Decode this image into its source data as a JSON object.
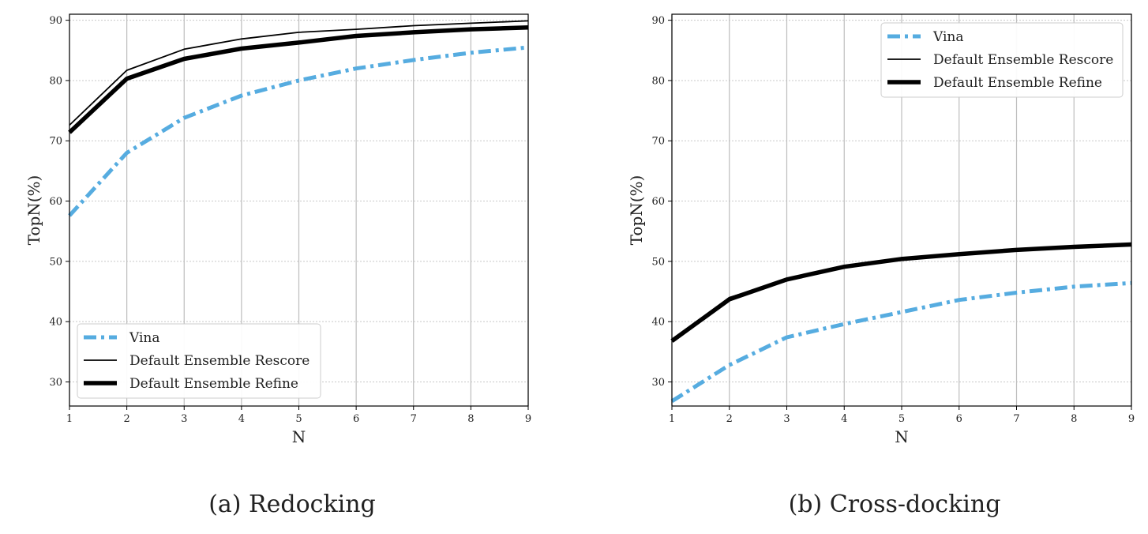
{
  "figure": {
    "captions": [
      "(a) Redocking",
      "(b) Cross-docking"
    ]
  },
  "colors": {
    "vina": "#56ACE0",
    "black": "#000000"
  },
  "chart_data": [
    {
      "type": "line",
      "title": "",
      "caption": "(a) Redocking",
      "xlabel": "N",
      "ylabel": "TopN(%)",
      "x": [
        1,
        2,
        3,
        4,
        5,
        6,
        7,
        8,
        9
      ],
      "xlim": [
        1,
        9
      ],
      "ylim": [
        26,
        91
      ],
      "yticks": [
        30,
        40,
        50,
        60,
        70,
        80,
        90
      ],
      "legend_position": "lower-left",
      "series": [
        {
          "name": "Vina",
          "style": "dashdot",
          "values": [
            57.6,
            68.0,
            73.8,
            77.5,
            80.0,
            82.0,
            83.4,
            84.6,
            85.5
          ]
        },
        {
          "name": "Default Ensemble Rescore",
          "style": "thin",
          "values": [
            72.6,
            81.7,
            85.2,
            86.9,
            88.0,
            88.5,
            89.1,
            89.5,
            89.9
          ]
        },
        {
          "name": "Default Ensemble Refine",
          "style": "thick",
          "values": [
            71.4,
            80.3,
            83.6,
            85.3,
            86.3,
            87.4,
            88.0,
            88.5,
            88.8
          ]
        }
      ]
    },
    {
      "type": "line",
      "title": "",
      "caption": "(b) Cross-docking",
      "xlabel": "N",
      "ylabel": "TopN(%)",
      "x": [
        1,
        2,
        3,
        4,
        5,
        6,
        7,
        8,
        9
      ],
      "xlim": [
        1,
        9
      ],
      "ylim": [
        26,
        91
      ],
      "yticks": [
        30,
        40,
        50,
        60,
        70,
        80,
        90
      ],
      "legend_position": "top-right",
      "series": [
        {
          "name": "Vina",
          "style": "dashdot",
          "values": [
            26.8,
            32.8,
            37.4,
            39.6,
            41.6,
            43.6,
            44.8,
            45.8,
            46.4
          ]
        },
        {
          "name": "Default Ensemble Rescore",
          "style": "thin",
          "values": [
            37.0,
            44.0,
            47.0,
            49.1,
            50.4,
            51.2,
            51.9,
            52.4,
            52.8
          ]
        },
        {
          "name": "Default Ensemble Refine",
          "style": "thick",
          "values": [
            36.8,
            43.7,
            47.0,
            49.1,
            50.4,
            51.2,
            51.9,
            52.4,
            52.8
          ]
        }
      ]
    }
  ]
}
